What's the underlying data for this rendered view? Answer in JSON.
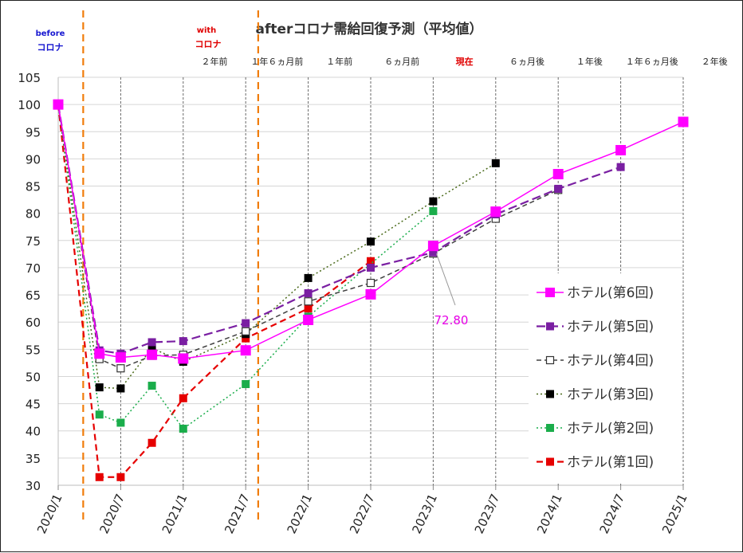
{
  "chart_data": {
    "type": "line",
    "title": "afterコロナ需給回復予測（平均値）",
    "era_labels": {
      "before_top": "before",
      "before_bottom": "コロナ",
      "with_top": "with",
      "with_bottom": "コロナ"
    },
    "x_ticks": [
      "2020/1",
      "2020/7",
      "2021/1",
      "2021/7",
      "2022/1",
      "2022/7",
      "2023/1",
      "2023/7",
      "2024/1",
      "2024/7",
      "2025/1"
    ],
    "period_labels": [
      {
        "x": 1.25,
        "text": "２年前",
        "highlight": false
      },
      {
        "x": 1.75,
        "text": "１年６ヵ月前",
        "highlight": false
      },
      {
        "x": 2.25,
        "text": "１年前",
        "highlight": false
      },
      {
        "x": 2.75,
        "text": "６ヵ月前",
        "highlight": false
      },
      {
        "x": 3.25,
        "text": "現在",
        "highlight": true
      },
      {
        "x": 3.75,
        "text": "６ヵ月後",
        "highlight": false
      },
      {
        "x": 4.25,
        "text": "１年後",
        "highlight": false
      },
      {
        "x": 4.75,
        "text": "１年６ヵ月後",
        "highlight": false
      },
      {
        "x": 5.25,
        "text": "２年後",
        "highlight": false
      }
    ],
    "ylim": [
      30,
      105
    ],
    "y_ticks": [
      30,
      35,
      40,
      45,
      50,
      55,
      60,
      65,
      70,
      75,
      80,
      85,
      90,
      95,
      100,
      105
    ],
    "xlim": [
      0,
      5
    ],
    "vertical_markers": [
      0.2,
      1.6
    ],
    "series": [
      {
        "name": "ホテル(第1回)",
        "color": "#e60000",
        "dash": "8,5",
        "width": 2.2,
        "marker": "filled",
        "points": [
          [
            0,
            100
          ],
          [
            0.33,
            31.5
          ],
          [
            0.5,
            31.5
          ],
          [
            0.75,
            37.8
          ],
          [
            1.0,
            46.0
          ],
          [
            1.5,
            57.0
          ],
          [
            2.0,
            62.5
          ],
          [
            2.5,
            71.2
          ]
        ]
      },
      {
        "name": "ホテル(第2回)",
        "color": "#1aad4b",
        "dash": "2,3",
        "width": 1.5,
        "marker": "filled",
        "points": [
          [
            0,
            100
          ],
          [
            0.33,
            43.0
          ],
          [
            0.5,
            41.5
          ],
          [
            0.75,
            48.3
          ],
          [
            1.0,
            40.4
          ],
          [
            1.5,
            48.6
          ],
          [
            2.0,
            61.0
          ],
          [
            3.0,
            80.4
          ]
        ]
      },
      {
        "name": "ホテル(第3回)",
        "color": "#4a6a1a",
        "dash": "2,3",
        "width": 1.5,
        "marker": "black",
        "points": [
          [
            0,
            100
          ],
          [
            0.33,
            48.0
          ],
          [
            0.5,
            47.8
          ],
          [
            0.75,
            55.2
          ],
          [
            1.0,
            52.7
          ],
          [
            1.5,
            57.8
          ],
          [
            2.0,
            68.1
          ],
          [
            2.5,
            74.8
          ],
          [
            3.0,
            82.2
          ],
          [
            3.5,
            89.2
          ]
        ]
      },
      {
        "name": "ホテル(第4回)",
        "color": "#404040",
        "dash": "6,4",
        "width": 1.5,
        "marker": "hollow",
        "points": [
          [
            0,
            100
          ],
          [
            0.33,
            53.2
          ],
          [
            0.5,
            51.5
          ],
          [
            0.75,
            53.8
          ],
          [
            1.0,
            54.0
          ],
          [
            1.5,
            58.3
          ],
          [
            2.0,
            63.8
          ],
          [
            2.5,
            67.2
          ],
          [
            3.0,
            72.6
          ],
          [
            3.5,
            79.0
          ],
          [
            4.0,
            84.3
          ]
        ]
      },
      {
        "name": "ホテル(第5回)",
        "color": "#7a1fa2",
        "dash": "11,5",
        "width": 2.2,
        "marker": "filled",
        "points": [
          [
            0,
            100
          ],
          [
            0.33,
            54.8
          ],
          [
            0.5,
            54.2
          ],
          [
            0.75,
            56.3
          ],
          [
            1.0,
            56.5
          ],
          [
            1.5,
            59.8
          ],
          [
            2.0,
            65.3
          ],
          [
            2.5,
            70.0
          ],
          [
            3.0,
            72.8
          ],
          [
            3.5,
            79.8
          ],
          [
            4.0,
            84.5
          ],
          [
            4.5,
            88.5
          ]
        ]
      },
      {
        "name": "ホテル(第6回)",
        "color": "#ff00ff",
        "dash": "",
        "width": 1.5,
        "marker": "filled-large",
        "points": [
          [
            0,
            100
          ],
          [
            0.33,
            54.2
          ],
          [
            0.5,
            53.5
          ],
          [
            0.75,
            54.0
          ],
          [
            1.0,
            53.3
          ],
          [
            1.5,
            54.8
          ],
          [
            2.0,
            60.4
          ],
          [
            2.5,
            65.1
          ],
          [
            3.0,
            74.0
          ],
          [
            3.5,
            80.3
          ],
          [
            4.0,
            87.2
          ],
          [
            4.5,
            91.6
          ],
          [
            5.0,
            96.8
          ]
        ]
      }
    ],
    "annotation": {
      "text": "72.80",
      "color": "#e600e6",
      "point": [
        3.0,
        73.2
      ]
    },
    "legend_position": "right-lower"
  }
}
